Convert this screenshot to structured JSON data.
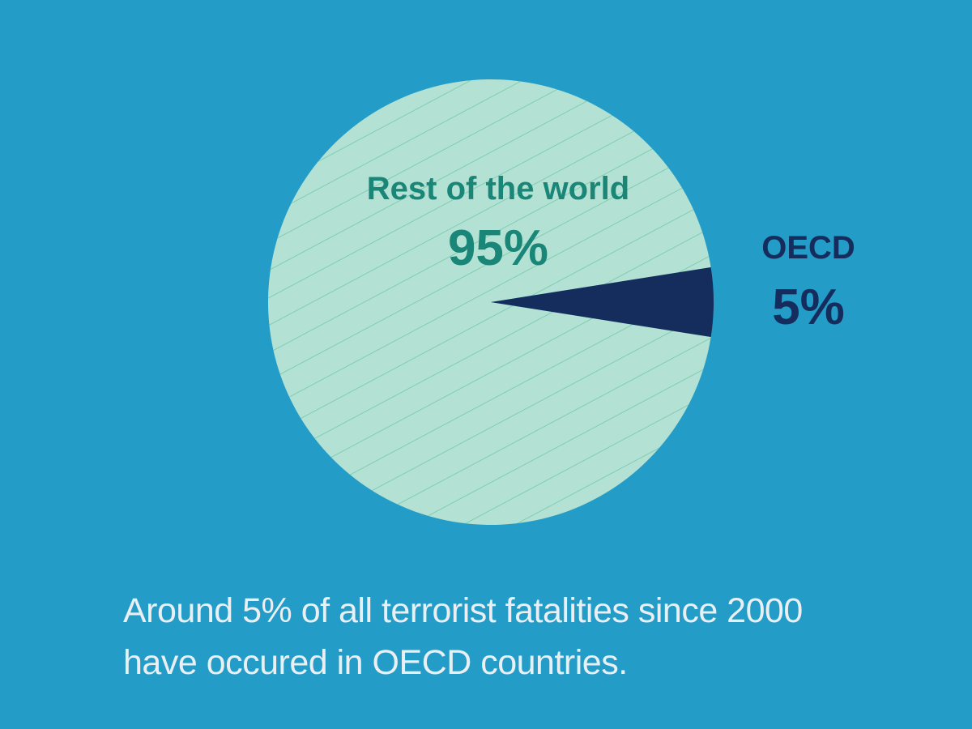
{
  "chart_data": {
    "type": "pie",
    "categories": [
      "Rest of the world",
      "OECD"
    ],
    "values": [
      95,
      5
    ],
    "value_labels": [
      "95%",
      "5%"
    ],
    "colors": [
      "#b3e1d3",
      "#152d5c"
    ],
    "label_colors": [
      "#1a8677",
      "#152d5c"
    ],
    "caption": "Around 5% of all terrorist fatalities since 2000 have occured in OECD countries."
  }
}
